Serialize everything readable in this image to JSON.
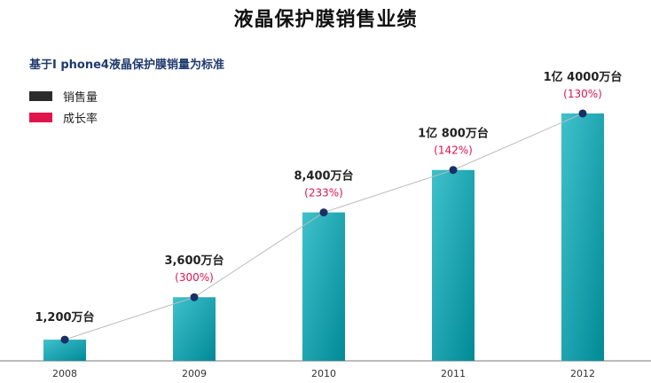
{
  "title": "液晶保护膜销售业绩",
  "subtitle": "基于I phone4液晶保护膜销量为标准",
  "legend": [
    {
      "label": "销售量",
      "color": "#2b2b2b"
    },
    {
      "label": "成长率",
      "color": "#e0144c"
    }
  ],
  "colors": {
    "bar_top": "#3fc1cc",
    "bar_bottom": "#008a96",
    "growth_text": "#e0144c",
    "marker": "#1a2f66",
    "line": "#bbbbbb"
  },
  "chart_data": {
    "type": "bar",
    "categories": [
      "2008",
      "2009",
      "2010",
      "2011",
      "2012"
    ],
    "series": [
      {
        "name": "销售量",
        "values": [
          1200,
          3600,
          8400,
          10800,
          14000
        ]
      },
      {
        "name": "成长率",
        "values": [
          null,
          300,
          233,
          142,
          130
        ]
      }
    ],
    "value_labels": [
      "1,200万台",
      "3,600万台",
      "8,400万台",
      "1亿 800万台",
      "1亿 4000万台"
    ],
    "growth_labels": [
      "",
      "(300%)",
      "(233%)",
      "(142%)",
      "(130%)"
    ],
    "ylim": [
      0,
      14800
    ],
    "grid": false,
    "legend_position": "top-left"
  }
}
